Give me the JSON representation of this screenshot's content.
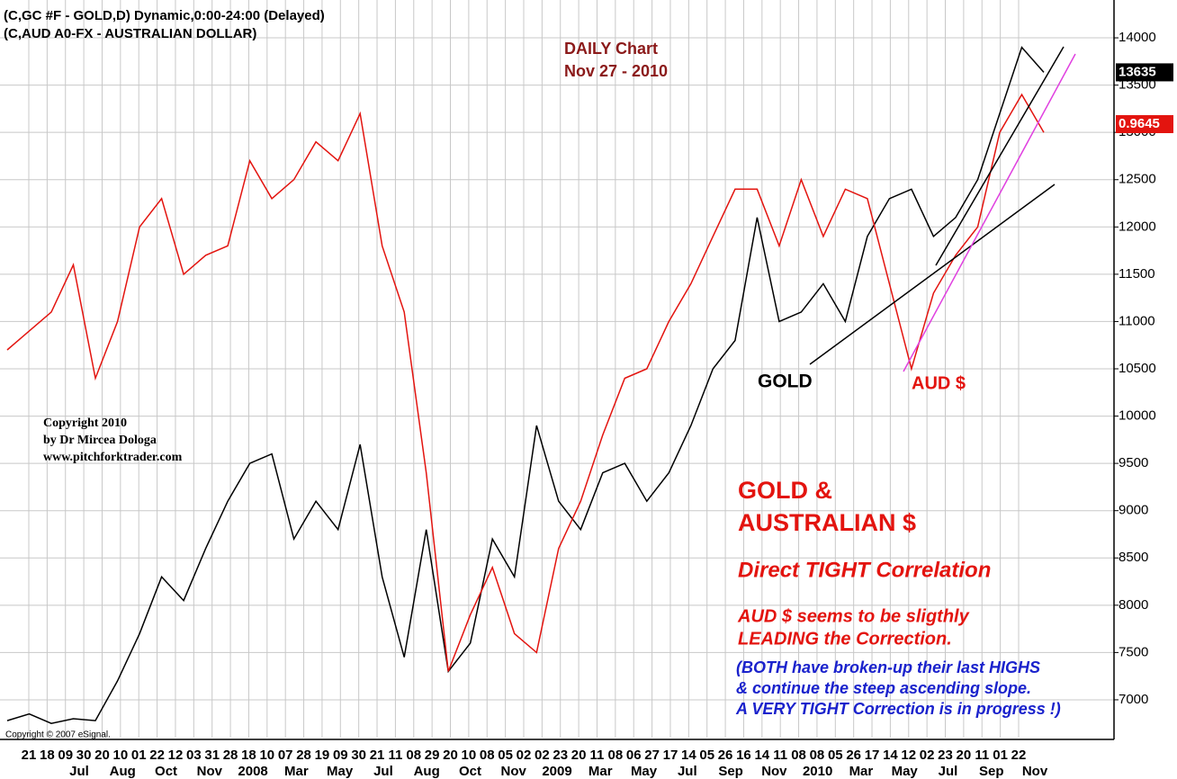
{
  "chart_data": {
    "type": "line",
    "header": [
      "(C,GC #F - GOLD,D) Dynamic,0:00-24:00 (Delayed)",
      "(C,AUD A0-FX - AUSTRALIAN DOLLAR)"
    ],
    "title": "DAILY Chart",
    "subtitle": "Nov 27 - 2010",
    "annotations": [
      "Copyright 2010",
      "by Dr Mircea Dologa",
      "www.pitchforktrader.com",
      "GOLD &",
      "AUSTRALIAN $",
      "Direct TIGHT Correlation",
      "AUD $ seems to be sligthly",
      "LEADING the Correction.",
      "(BOTH have broken-up their last HIGHS",
      "&  continue the steep ascending slope.",
      "A VERY TIGHT Correction is in progress !)",
      "Copyright © 2007 eSignal."
    ],
    "x_day_labels": [
      "21",
      "18",
      "09",
      "30",
      "20",
      "10",
      "01",
      "22",
      "12",
      "03",
      "31",
      "28",
      "18",
      "10",
      "07",
      "28",
      "19",
      "09",
      "30",
      "21",
      "11",
      "08",
      "29",
      "20",
      "10",
      "08",
      "05",
      "02",
      "02",
      "23",
      "20",
      "11",
      "08",
      "06",
      "27",
      "17",
      "14",
      "05",
      "26",
      "16",
      "14",
      "11",
      "08",
      "08",
      "05",
      "26",
      "17",
      "14",
      "12",
      "02",
      "23",
      "20",
      "11",
      "01",
      "22"
    ],
    "x_month_labels": [
      "Jul",
      "Aug",
      "Oct",
      "Nov",
      "2008",
      "Mar",
      "May",
      "Jul",
      "Aug",
      "Oct",
      "Nov",
      "2009",
      "Mar",
      "May",
      "Jul",
      "Sep",
      "Nov",
      "2010",
      "Mar",
      "May",
      "Jul",
      "Sep",
      "Nov"
    ],
    "ylim": [
      6600,
      14400
    ],
    "yticks": [
      7000,
      7500,
      8000,
      8500,
      9000,
      9500,
      10000,
      10500,
      11000,
      11500,
      12000,
      12500,
      13000,
      13500,
      14000
    ],
    "grid": true,
    "series": [
      {
        "name": "GOLD",
        "color": "#000000",
        "last_label": "13635",
        "values": [
          6780,
          6850,
          6750,
          6800,
          6780,
          7200,
          7700,
          8300,
          8050,
          8600,
          9100,
          9500,
          9600,
          8700,
          9100,
          8800,
          9700,
          8300,
          7450,
          8800,
          7300,
          7600,
          8700,
          8300,
          9900,
          9100,
          8800,
          9400,
          9500,
          9100,
          9400,
          9900,
          10500,
          10800,
          12100,
          11000,
          11100,
          11400,
          11000,
          11900,
          12300,
          12400,
          11900,
          12100,
          12500,
          13200,
          13900,
          13635
        ]
      },
      {
        "name": "AUD $",
        "color": "#e3140f",
        "last_label": "0.9645",
        "values": [
          10700,
          10900,
          11100,
          11600,
          10400,
          11000,
          12000,
          12300,
          11500,
          11700,
          11800,
          12700,
          12300,
          12500,
          12900,
          12700,
          13200,
          11800,
          11100,
          9400,
          7300,
          7900,
          8400,
          7700,
          7500,
          8600,
          9100,
          9800,
          10400,
          10500,
          11000,
          11400,
          11900,
          12400,
          12400,
          11800,
          12500,
          11900,
          12400,
          12300,
          11400,
          10500,
          11300,
          11700,
          12000,
          13000,
          13400,
          13000
        ]
      }
    ]
  }
}
